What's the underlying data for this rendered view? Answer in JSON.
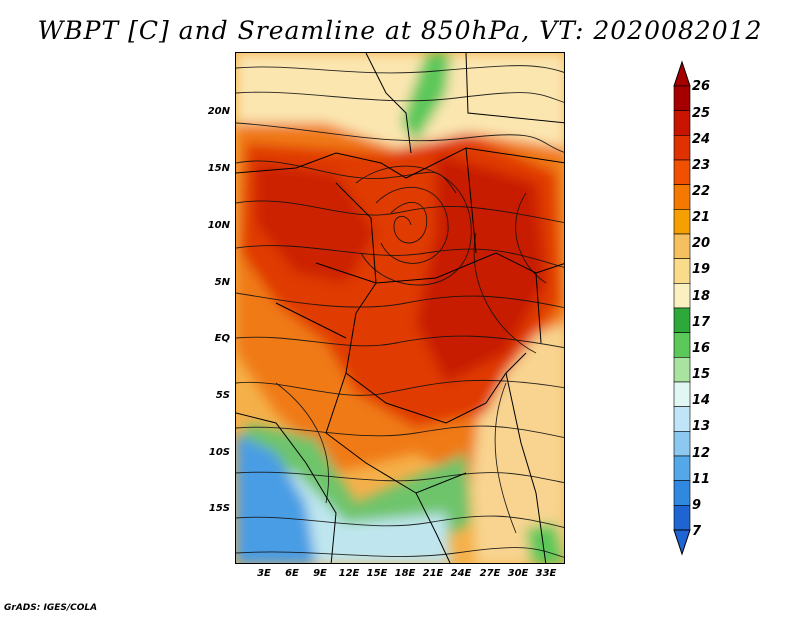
{
  "title": "WBPT [C] and Sreamline at 850hPa, VT: 2020082012",
  "credit": "GrADS: IGES/COLA",
  "y_axis_labels": [
    "20N",
    "15N",
    "10N",
    "5N",
    "EQ",
    "5S",
    "10S",
    "15S"
  ],
  "x_axis_labels": [
    "3E",
    "6E",
    "9E",
    "12E",
    "15E",
    "18E",
    "21E",
    "24E",
    "27E",
    "30E",
    "33E"
  ],
  "colorbar": {
    "labels": [
      "26",
      "25",
      "24",
      "23",
      "22",
      "21",
      "20",
      "19",
      "18",
      "17",
      "16",
      "15",
      "14",
      "13",
      "12",
      "11",
      "9",
      "7"
    ],
    "colors": [
      "#a50000",
      "#c81400",
      "#e03200",
      "#f05000",
      "#f57800",
      "#f5a000",
      "#f5c060",
      "#f8dc8c",
      "#fbf0c0",
      "#2fa83a",
      "#5cc85a",
      "#a8e4a0",
      "#e0f7f4",
      "#c0e4f8",
      "#8cc8f0",
      "#55a8e8",
      "#3088e0",
      "#1e64d2"
    ]
  },
  "palette": {
    "deep_red": "#b40a00",
    "red": "#dc2d00",
    "orange_red": "#ec4b00",
    "orange": "#f08c1e",
    "light_orange": "#f5b450",
    "tan": "#f8d28c",
    "pale": "#fbeab8",
    "green": "#2fa83a",
    "light_green": "#8cd488",
    "blue": "#4a9de4",
    "light_blue": "#b8dcf4"
  }
}
